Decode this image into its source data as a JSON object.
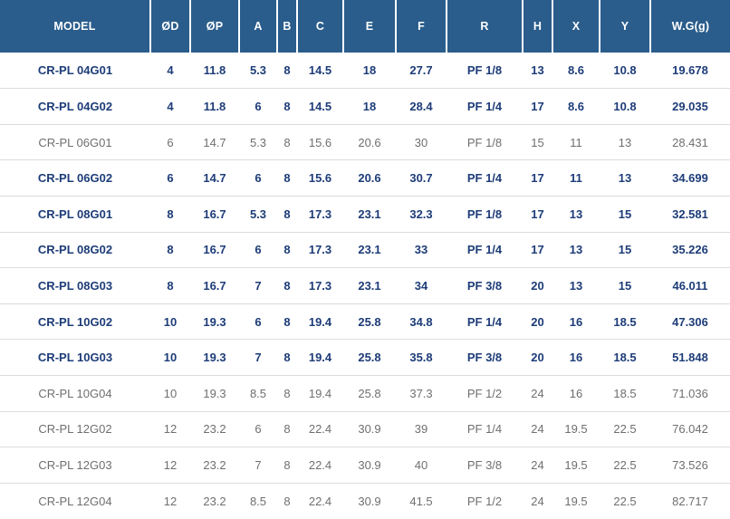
{
  "colors": {
    "header_bg": "#2a5d8c",
    "header_text": "#ffffff",
    "emphasis_text": "#1d3c78",
    "plain_text": "#6f6f6f",
    "divider": "#dcdcdc",
    "page_bg": "#ffffff"
  },
  "table": {
    "columns": [
      {
        "key": "model",
        "label": "MODEL"
      },
      {
        "key": "od",
        "label": "ØD"
      },
      {
        "key": "op",
        "label": "ØP"
      },
      {
        "key": "a",
        "label": "A"
      },
      {
        "key": "b",
        "label": "B"
      },
      {
        "key": "c",
        "label": "C"
      },
      {
        "key": "e",
        "label": "E"
      },
      {
        "key": "f",
        "label": "F"
      },
      {
        "key": "r",
        "label": "R"
      },
      {
        "key": "h",
        "label": "H"
      },
      {
        "key": "x",
        "label": "X"
      },
      {
        "key": "y",
        "label": "Y"
      },
      {
        "key": "wg",
        "label": "W.G(g)"
      }
    ],
    "rows": [
      {
        "emphasis": true,
        "values": [
          "CR-PL 04G01",
          "4",
          "11.8",
          "5.3",
          "8",
          "14.5",
          "18",
          "27.7",
          "PF 1/8",
          "13",
          "8.6",
          "10.8",
          "19.678"
        ]
      },
      {
        "emphasis": true,
        "values": [
          "CR-PL 04G02",
          "4",
          "11.8",
          "6",
          "8",
          "14.5",
          "18",
          "28.4",
          "PF 1/4",
          "17",
          "8.6",
          "10.8",
          "29.035"
        ]
      },
      {
        "emphasis": false,
        "values": [
          "CR-PL 06G01",
          "6",
          "14.7",
          "5.3",
          "8",
          "15.6",
          "20.6",
          "30",
          "PF 1/8",
          "15",
          "11",
          "13",
          "28.431"
        ]
      },
      {
        "emphasis": true,
        "values": [
          "CR-PL 06G02",
          "6",
          "14.7",
          "6",
          "8",
          "15.6",
          "20.6",
          "30.7",
          "PF 1/4",
          "17",
          "11",
          "13",
          "34.699"
        ]
      },
      {
        "emphasis": true,
        "values": [
          "CR-PL 08G01",
          "8",
          "16.7",
          "5.3",
          "8",
          "17.3",
          "23.1",
          "32.3",
          "PF 1/8",
          "17",
          "13",
          "15",
          "32.581"
        ]
      },
      {
        "emphasis": true,
        "values": [
          "CR-PL 08G02",
          "8",
          "16.7",
          "6",
          "8",
          "17.3",
          "23.1",
          "33",
          "PF 1/4",
          "17",
          "13",
          "15",
          "35.226"
        ]
      },
      {
        "emphasis": true,
        "values": [
          "CR-PL 08G03",
          "8",
          "16.7",
          "7",
          "8",
          "17.3",
          "23.1",
          "34",
          "PF 3/8",
          "20",
          "13",
          "15",
          "46.011"
        ]
      },
      {
        "emphasis": true,
        "values": [
          "CR-PL 10G02",
          "10",
          "19.3",
          "6",
          "8",
          "19.4",
          "25.8",
          "34.8",
          "PF 1/4",
          "20",
          "16",
          "18.5",
          "47.306"
        ]
      },
      {
        "emphasis": true,
        "values": [
          "CR-PL 10G03",
          "10",
          "19.3",
          "7",
          "8",
          "19.4",
          "25.8",
          "35.8",
          "PF 3/8",
          "20",
          "16",
          "18.5",
          "51.848"
        ]
      },
      {
        "emphasis": false,
        "values": [
          "CR-PL 10G04",
          "10",
          "19.3",
          "8.5",
          "8",
          "19.4",
          "25.8",
          "37.3",
          "PF 1/2",
          "24",
          "16",
          "18.5",
          "71.036"
        ]
      },
      {
        "emphasis": false,
        "values": [
          "CR-PL 12G02",
          "12",
          "23.2",
          "6",
          "8",
          "22.4",
          "30.9",
          "39",
          "PF 1/4",
          "24",
          "19.5",
          "22.5",
          "76.042"
        ]
      },
      {
        "emphasis": false,
        "values": [
          "CR-PL 12G03",
          "12",
          "23.2",
          "7",
          "8",
          "22.4",
          "30.9",
          "40",
          "PF 3/8",
          "24",
          "19.5",
          "22.5",
          "73.526"
        ]
      },
      {
        "emphasis": false,
        "values": [
          "CR-PL 12G04",
          "12",
          "23.2",
          "8.5",
          "8",
          "22.4",
          "30.9",
          "41.5",
          "PF 1/2",
          "24",
          "19.5",
          "22.5",
          "82.717"
        ]
      }
    ]
  }
}
